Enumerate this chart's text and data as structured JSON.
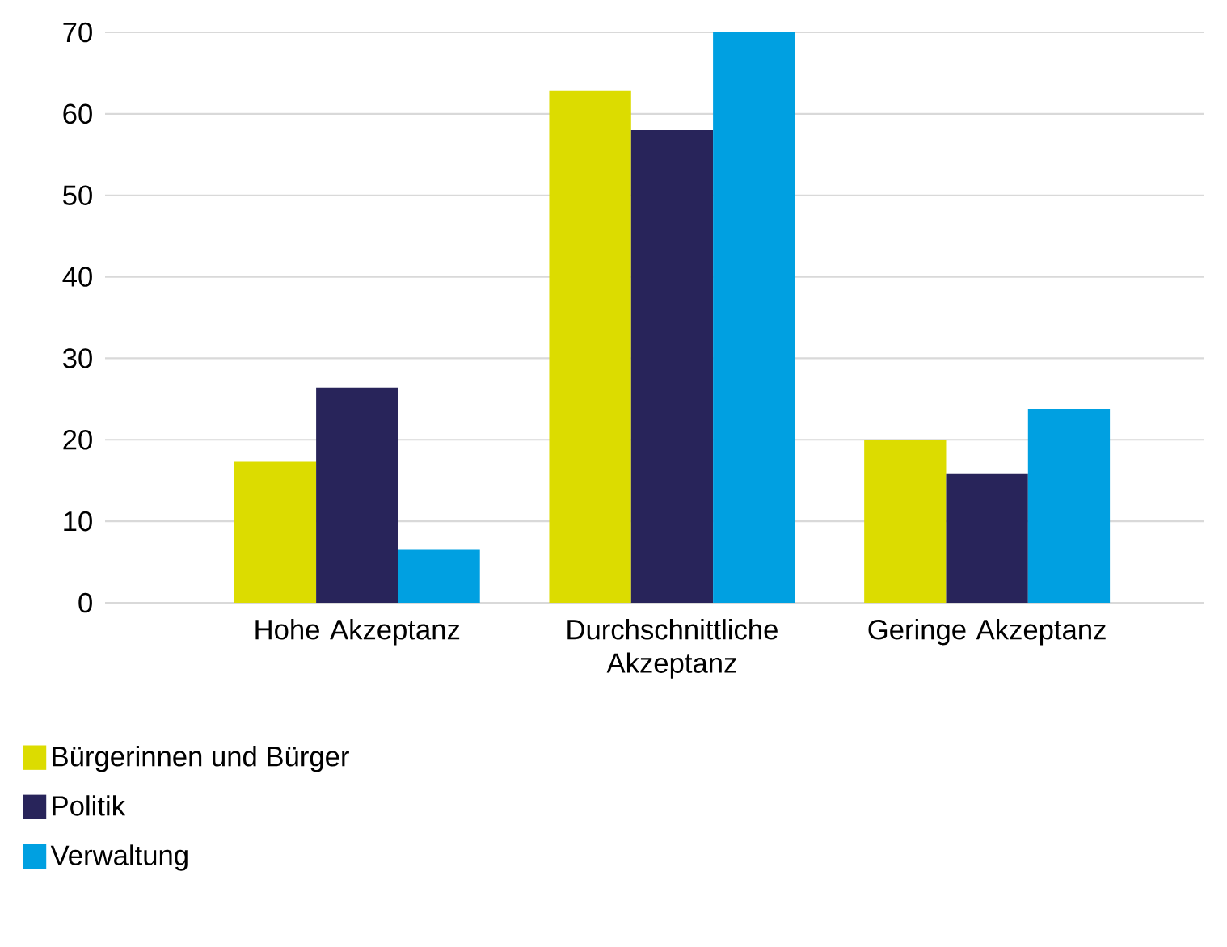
{
  "chart_data": {
    "type": "bar",
    "categories": [
      "Hohe Akzeptanz",
      "Durchschnittliche Akzeptanz",
      "Geringe Akzeptanz"
    ],
    "series": [
      {
        "name": "Bürgerinnen und Bürger",
        "color": "#dcdc00",
        "values": [
          17.3,
          62.8,
          20
        ]
      },
      {
        "name": "Politik",
        "color": "#28245a",
        "values": [
          26.4,
          58,
          15.9
        ]
      },
      {
        "name": "Verwaltung",
        "color": "#00a0e1",
        "values": [
          6.5,
          70,
          23.8
        ]
      }
    ],
    "ylim": [
      0,
      70
    ],
    "yticks": [
      0,
      10,
      20,
      30,
      40,
      50,
      60,
      70
    ],
    "grid": "y",
    "legend": "bottom left"
  }
}
